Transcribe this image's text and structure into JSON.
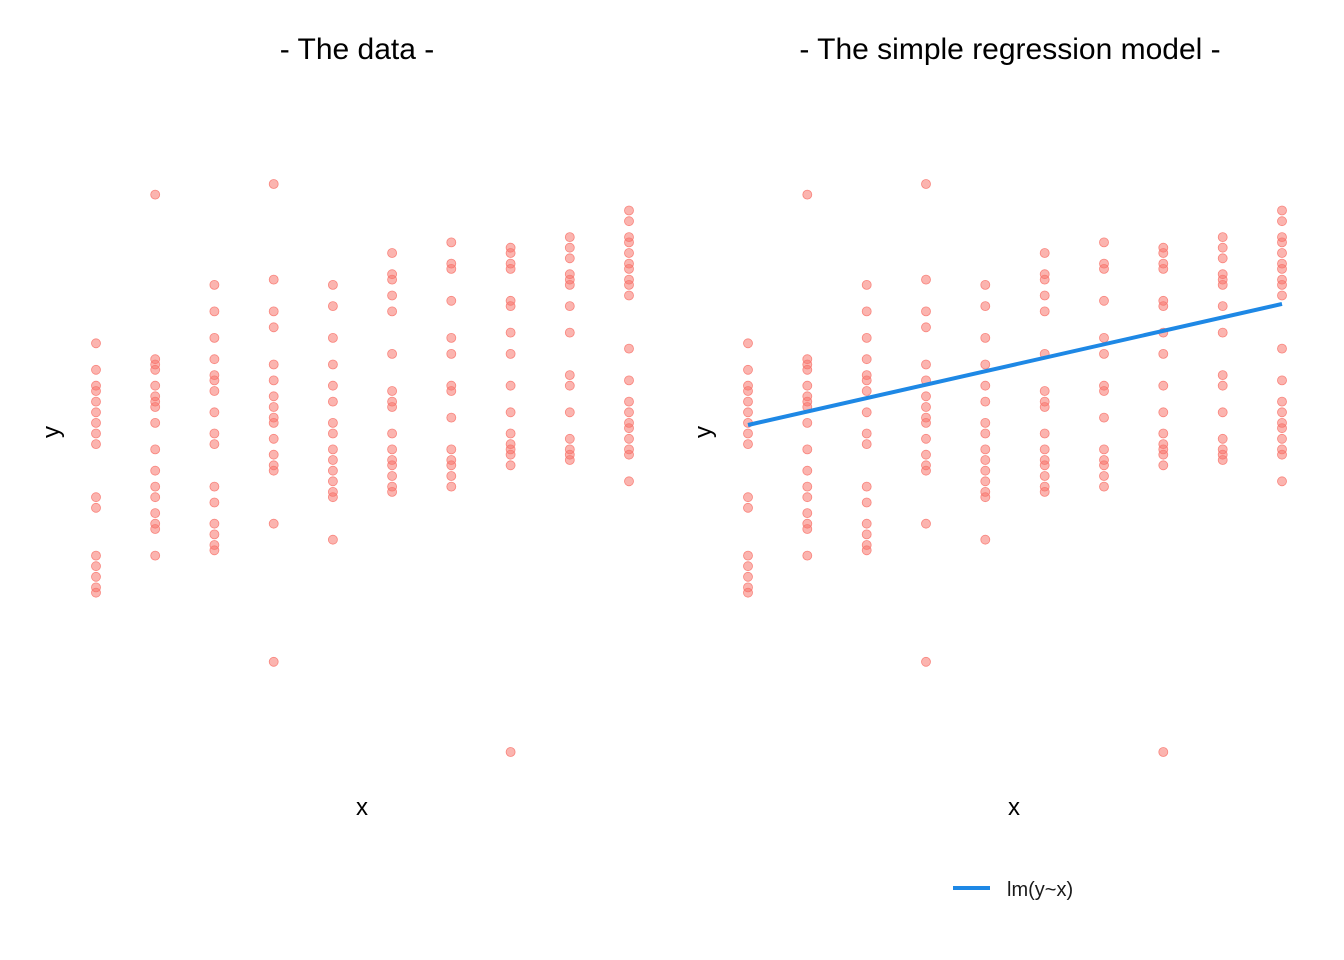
{
  "chart_data": [
    {
      "type": "scatter",
      "title": "- The data -",
      "xlabel": "x",
      "ylabel": "y",
      "grid": false,
      "x_ticks_shown": false,
      "y_ticks_shown": false,
      "point_color": "#f8766d",
      "series": [
        {
          "points": [
            [
              1,
              0.4
            ],
            [
              1,
              0.41
            ],
            [
              1,
              0.43
            ],
            [
              1,
              0.45
            ],
            [
              1,
              0.47
            ],
            [
              1,
              0.56
            ],
            [
              1,
              0.58
            ],
            [
              1,
              0.68
            ],
            [
              1,
              0.7
            ],
            [
              1,
              0.72
            ],
            [
              1,
              0.74
            ],
            [
              1,
              0.76
            ],
            [
              1,
              0.78
            ],
            [
              1,
              0.79
            ],
            [
              1,
              0.82
            ],
            [
              1,
              0.87
            ],
            [
              2,
              0.47
            ],
            [
              2,
              0.52
            ],
            [
              2,
              0.53
            ],
            [
              2,
              0.55
            ],
            [
              2,
              0.58
            ],
            [
              2,
              0.6
            ],
            [
              2,
              0.63
            ],
            [
              2,
              0.67
            ],
            [
              2,
              0.72
            ],
            [
              2,
              0.75
            ],
            [
              2,
              0.76
            ],
            [
              2,
              0.77
            ],
            [
              2,
              0.79
            ],
            [
              2,
              0.82
            ],
            [
              2,
              0.83
            ],
            [
              2,
              0.84
            ],
            [
              2,
              1.15
            ],
            [
              3,
              0.48
            ],
            [
              3,
              0.49
            ],
            [
              3,
              0.51
            ],
            [
              3,
              0.53
            ],
            [
              3,
              0.57
            ],
            [
              3,
              0.6
            ],
            [
              3,
              0.68
            ],
            [
              3,
              0.7
            ],
            [
              3,
              0.74
            ],
            [
              3,
              0.78
            ],
            [
              3,
              0.8
            ],
            [
              3,
              0.81
            ],
            [
              3,
              0.84
            ],
            [
              3,
              0.88
            ],
            [
              3,
              0.93
            ],
            [
              3,
              0.98
            ],
            [
              4,
              0.27
            ],
            [
              4,
              0.53
            ],
            [
              4,
              0.63
            ],
            [
              4,
              0.64
            ],
            [
              4,
              0.66
            ],
            [
              4,
              0.69
            ],
            [
              4,
              0.72
            ],
            [
              4,
              0.73
            ],
            [
              4,
              0.75
            ],
            [
              4,
              0.77
            ],
            [
              4,
              0.8
            ],
            [
              4,
              0.83
            ],
            [
              4,
              0.9
            ],
            [
              4,
              0.93
            ],
            [
              4,
              0.99
            ],
            [
              4,
              1.17
            ],
            [
              5,
              0.5
            ],
            [
              5,
              0.58
            ],
            [
              5,
              0.59
            ],
            [
              5,
              0.61
            ],
            [
              5,
              0.63
            ],
            [
              5,
              0.65
            ],
            [
              5,
              0.67
            ],
            [
              5,
              0.7
            ],
            [
              5,
              0.72
            ],
            [
              5,
              0.76
            ],
            [
              5,
              0.79
            ],
            [
              5,
              0.83
            ],
            [
              5,
              0.88
            ],
            [
              5,
              0.94
            ],
            [
              5,
              0.98
            ],
            [
              6,
              0.59
            ],
            [
              6,
              0.6
            ],
            [
              6,
              0.62
            ],
            [
              6,
              0.64
            ],
            [
              6,
              0.65
            ],
            [
              6,
              0.67
            ],
            [
              6,
              0.7
            ],
            [
              6,
              0.75
            ],
            [
              6,
              0.76
            ],
            [
              6,
              0.78
            ],
            [
              6,
              0.85
            ],
            [
              6,
              0.93
            ],
            [
              6,
              0.96
            ],
            [
              6,
              0.99
            ],
            [
              6,
              1.0
            ],
            [
              6,
              1.04
            ],
            [
              7,
              0.6
            ],
            [
              7,
              0.62
            ],
            [
              7,
              0.64
            ],
            [
              7,
              0.65
            ],
            [
              7,
              0.67
            ],
            [
              7,
              0.73
            ],
            [
              7,
              0.78
            ],
            [
              7,
              0.79
            ],
            [
              7,
              0.85
            ],
            [
              7,
              0.88
            ],
            [
              7,
              0.95
            ],
            [
              7,
              1.01
            ],
            [
              7,
              1.02
            ],
            [
              7,
              1.06
            ],
            [
              8,
              0.1
            ],
            [
              8,
              0.64
            ],
            [
              8,
              0.66
            ],
            [
              8,
              0.67
            ],
            [
              8,
              0.68
            ],
            [
              8,
              0.7
            ],
            [
              8,
              0.74
            ],
            [
              8,
              0.79
            ],
            [
              8,
              0.85
            ],
            [
              8,
              0.89
            ],
            [
              8,
              0.94
            ],
            [
              8,
              0.95
            ],
            [
              8,
              1.01
            ],
            [
              8,
              1.02
            ],
            [
              8,
              1.04
            ],
            [
              8,
              1.05
            ],
            [
              9,
              0.65
            ],
            [
              9,
              0.66
            ],
            [
              9,
              0.67
            ],
            [
              9,
              0.69
            ],
            [
              9,
              0.74
            ],
            [
              9,
              0.79
            ],
            [
              9,
              0.81
            ],
            [
              9,
              0.89
            ],
            [
              9,
              0.94
            ],
            [
              9,
              0.98
            ],
            [
              9,
              0.99
            ],
            [
              9,
              1.0
            ],
            [
              9,
              1.03
            ],
            [
              9,
              1.05
            ],
            [
              9,
              1.07
            ],
            [
              10,
              0.61
            ],
            [
              10,
              0.66
            ],
            [
              10,
              0.67
            ],
            [
              10,
              0.69
            ],
            [
              10,
              0.71
            ],
            [
              10,
              0.72
            ],
            [
              10,
              0.74
            ],
            [
              10,
              0.76
            ],
            [
              10,
              0.8
            ],
            [
              10,
              0.86
            ],
            [
              10,
              0.96
            ],
            [
              10,
              0.98
            ],
            [
              10,
              0.99
            ],
            [
              10,
              1.01
            ],
            [
              10,
              1.02
            ],
            [
              10,
              1.04
            ],
            [
              10,
              1.06
            ],
            [
              10,
              1.07
            ],
            [
              10,
              1.1
            ],
            [
              10,
              1.12
            ]
          ]
        }
      ]
    },
    {
      "type": "scatter",
      "title": "- The simple regression model -",
      "xlabel": "x",
      "ylabel": "y",
      "grid": false,
      "x_ticks_shown": false,
      "y_ticks_shown": false,
      "point_color": "#f8766d",
      "series": [
        {
          "points": "same as panel 1"
        }
      ],
      "fit_line": {
        "name": "lm(y~x)",
        "color": "#1e88e5",
        "x": [
          1,
          10
        ],
        "y": [
          0.716,
          0.944
        ]
      },
      "legend": {
        "position": "bottom",
        "entries": [
          "lm(y~x)"
        ]
      }
    }
  ]
}
